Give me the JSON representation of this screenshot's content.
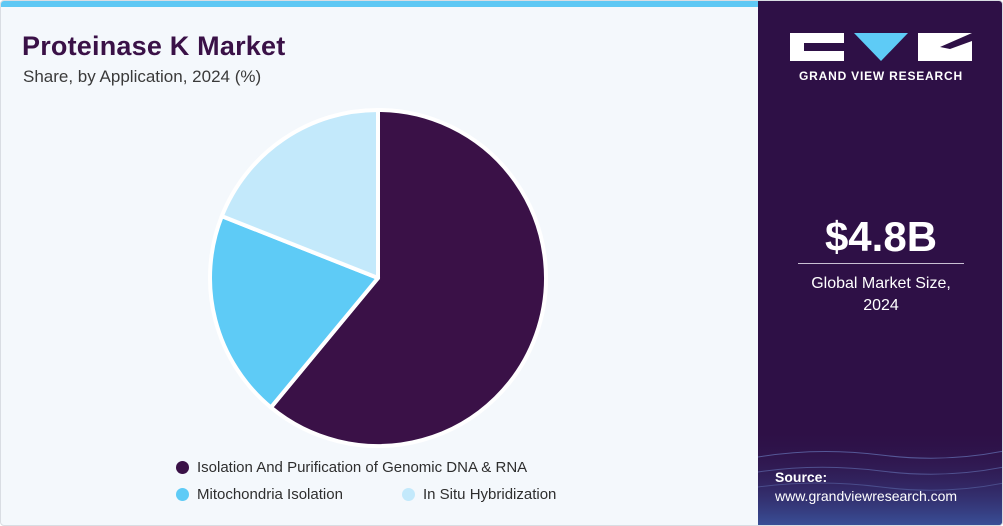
{
  "chart_data": {
    "type": "pie",
    "title": "Proteinase K Market",
    "subtitle": "Share, by Application, 2024 (%)",
    "categories": [
      "Isolation And Purification of Genomic DNA & RNA",
      "Mitochondria Isolation",
      "In Situ Hybridization"
    ],
    "values": [
      61,
      20,
      19
    ],
    "colors": [
      "#3a1147",
      "#5ecbf6",
      "#c3e9fb"
    ],
    "legend_position": "bottom"
  },
  "panel": {
    "brand": "GRAND VIEW RESEARCH",
    "market_size": "$4.8B",
    "market_size_label_line1": "Global Market Size,",
    "market_size_label_line2": "2024",
    "source_label": "Source:",
    "source_url": "www.grandviewresearch.com"
  }
}
